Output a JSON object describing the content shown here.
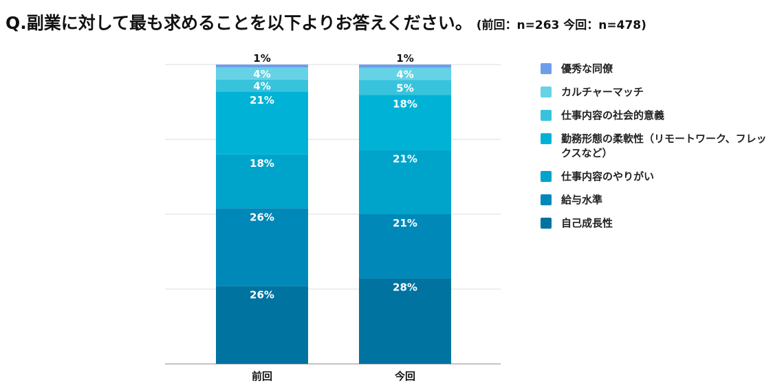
{
  "title": "Q.副業に対して最も求めることを以下よりお答えください。",
  "subtitle": "(前回：n=263 今回：n=478)",
  "chart_data": {
    "type": "bar",
    "stacked": true,
    "categories": [
      "前回",
      "今回"
    ],
    "ylim": [
      0,
      100
    ],
    "grid": true,
    "legend_position": "right",
    "series": [
      {
        "name": "自己成長性",
        "values": [
          26,
          28
        ],
        "labels": [
          "26%",
          "28%"
        ],
        "color": "#0073a0"
      },
      {
        "name": "給与水準",
        "values": [
          26,
          21
        ],
        "labels": [
          "26%",
          "21%"
        ],
        "color": "#0088b8"
      },
      {
        "name": "仕事内容のやりがい",
        "values": [
          18,
          21
        ],
        "labels": [
          "18%",
          "21%"
        ],
        "color": "#00a4cb"
      },
      {
        "name": "勤務形態の柔軟性（リモートワーク、フレックスなど）",
        "values": [
          21,
          18
        ],
        "labels": [
          "21%",
          "18%"
        ],
        "color": "#00b3d6"
      },
      {
        "name": "仕事内容の社会的意義",
        "values": [
          4,
          5
        ],
        "labels": [
          "4%",
          "5%"
        ],
        "color": "#38c3dd"
      },
      {
        "name": "カルチャーマッチ",
        "values": [
          4,
          4
        ],
        "labels": [
          "4%",
          "4%"
        ],
        "color": "#66d2e6"
      },
      {
        "name": "優秀な同僚",
        "values": [
          1,
          1
        ],
        "labels": [
          "1%",
          "1%"
        ],
        "color": "#6d9eeb"
      }
    ]
  }
}
